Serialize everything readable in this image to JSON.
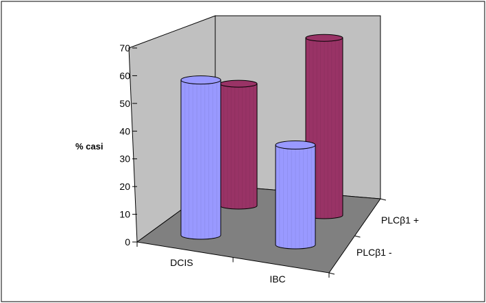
{
  "chart_data": {
    "type": "bar",
    "style": "3d-cylinder",
    "categories": [
      "DCIS",
      "IBC"
    ],
    "series": [
      {
        "name": "PLCβ1 -",
        "values": [
          56,
          36
        ],
        "color": "#9999ff"
      },
      {
        "name": "PLCβ1 +",
        "values": [
          44,
          64
        ],
        "color": "#993366"
      }
    ],
    "ylabel": "% casi",
    "ylim": [
      0,
      70
    ],
    "yticks": [
      0,
      10,
      20,
      30,
      40,
      50,
      60,
      70
    ],
    "grid": false,
    "colors": {
      "wall": "#c0c0c0",
      "floor": "#808080",
      "border": "#000000"
    }
  }
}
